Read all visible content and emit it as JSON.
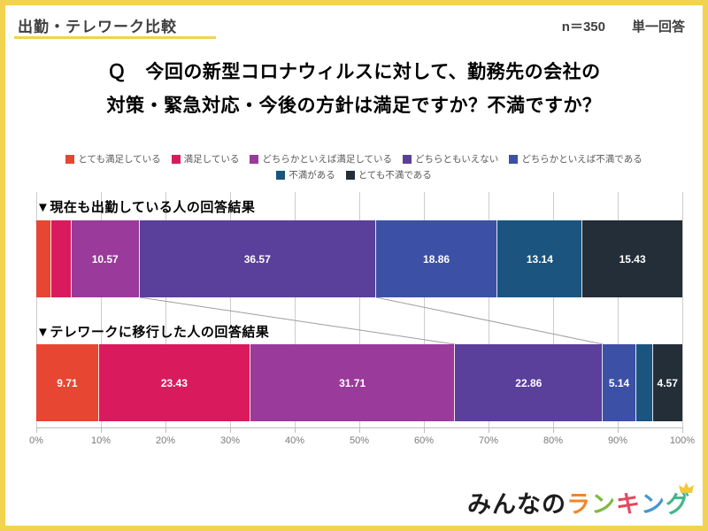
{
  "header": {
    "title": "出勤・テレワーク比較",
    "sample_size": "n＝350",
    "answer_type": "単一回答"
  },
  "question": {
    "line1": "Ｑ　今回の新型コロナウィルスに対して、勤務先の会社の",
    "line2": "対策・緊急対応・今後の方針は満足ですか？不満ですか？"
  },
  "chart_data": {
    "type": "bar",
    "variant": "horizontal-stacked-100pct",
    "xlim": [
      0,
      100
    ],
    "x_ticks": [
      "0%",
      "10%",
      "20%",
      "30%",
      "40%",
      "50%",
      "60%",
      "70%",
      "80%",
      "90%",
      "100%"
    ],
    "grid": true,
    "legend_position": "top-center",
    "legend_rows": [
      5,
      2
    ],
    "value_label_min_pct": 4,
    "categories": [
      "とても満足している",
      "満足している",
      "どちらかといえば満足している",
      "どちらともいえない",
      "どちらかといえば不満である",
      "不満がある",
      "とても不満である"
    ],
    "colors": [
      "#E64632",
      "#D91B5D",
      "#9A3A9A",
      "#5A3F9B",
      "#3C50A5",
      "#1A547F",
      "#232E38"
    ],
    "bars": [
      {
        "label": "▼現在も出勤している人の回答結果",
        "values": [
          2.29,
          3.14,
          10.57,
          36.57,
          18.86,
          13.14,
          15.43
        ]
      },
      {
        "label": "▼テレワークに移行した人の回答結果",
        "values": [
          9.71,
          23.43,
          31.71,
          22.86,
          5.14,
          2.57,
          4.57
        ]
      }
    ],
    "connectors_after_segment": [
      3,
      4
    ]
  },
  "footer": {
    "logo_prefix": "みんなの",
    "logo_colored": [
      {
        "char": "ラ",
        "color": "#F0862B"
      },
      {
        "char": "ン",
        "color": "#7FBA42"
      },
      {
        "char": "キ",
        "color": "#E7485F"
      },
      {
        "char": "ン",
        "color": "#4596D1"
      },
      {
        "char": "グ",
        "color": "#44B688"
      }
    ],
    "crown_color": "#F2C93C"
  },
  "theme": {
    "frame_color": "#F2D24E",
    "grid_color": "#CCCCCC",
    "axis_text_color": "#7A7A7A",
    "connector_color": "#9E9E9E"
  }
}
